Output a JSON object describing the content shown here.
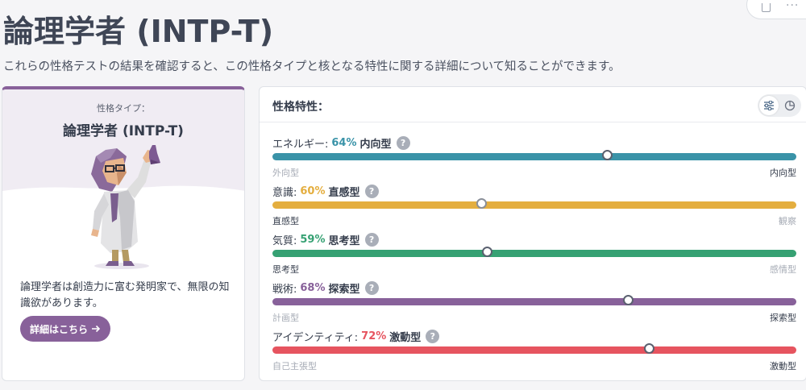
{
  "page": {
    "title": "論理学者 (INTP-T)",
    "subtitle": "これらの性格テストの結果を確認すると、この性格タイプと核となる特性に関する詳細について知ることができます。"
  },
  "card": {
    "type_label": "性格タイプ：",
    "type_name": "論理学者 (INTP-T)",
    "description": "論理学者は創造力に富む発明家で、無限の知識欲があります。",
    "button_label": "詳細はこちら",
    "button_icon": "arrow-right-icon",
    "accent": "#88619a"
  },
  "panel": {
    "title": "性格特性：",
    "help_glyph": "?",
    "view_toggle": [
      "sliders-icon",
      "pie-chart-icon"
    ],
    "active_view": "sliders-icon"
  },
  "traits": [
    {
      "label": "エネルギー:",
      "percent": "64%",
      "percent_value": 64,
      "side": "内向型",
      "left": "外向型",
      "right": "内向型",
      "active_end": "right",
      "knob_position": 64,
      "color": "#3a93a8"
    },
    {
      "label": "意識:",
      "percent": "60%",
      "percent_value": 60,
      "side": "直感型",
      "left": "直感型",
      "right": "観察",
      "active_end": "left",
      "knob_position": 40,
      "color": "#e4ae3f"
    },
    {
      "label": "気質:",
      "percent": "59%",
      "percent_value": 59,
      "side": "思考型",
      "left": "思考型",
      "right": "感情型",
      "active_end": "left",
      "knob_position": 41,
      "color": "#36a173"
    },
    {
      "label": "戦術:",
      "percent": "68%",
      "percent_value": 68,
      "side": "探索型",
      "left": "計画型",
      "right": "探索型",
      "active_end": "right",
      "knob_position": 68,
      "color": "#88619a"
    },
    {
      "label": "アイデンティティ:",
      "percent": "72%",
      "percent_value": 72,
      "side": "激動型",
      "left": "自己主張型",
      "right": "激動型",
      "active_end": "right",
      "knob_position": 72,
      "color": "#e6545f"
    }
  ]
}
